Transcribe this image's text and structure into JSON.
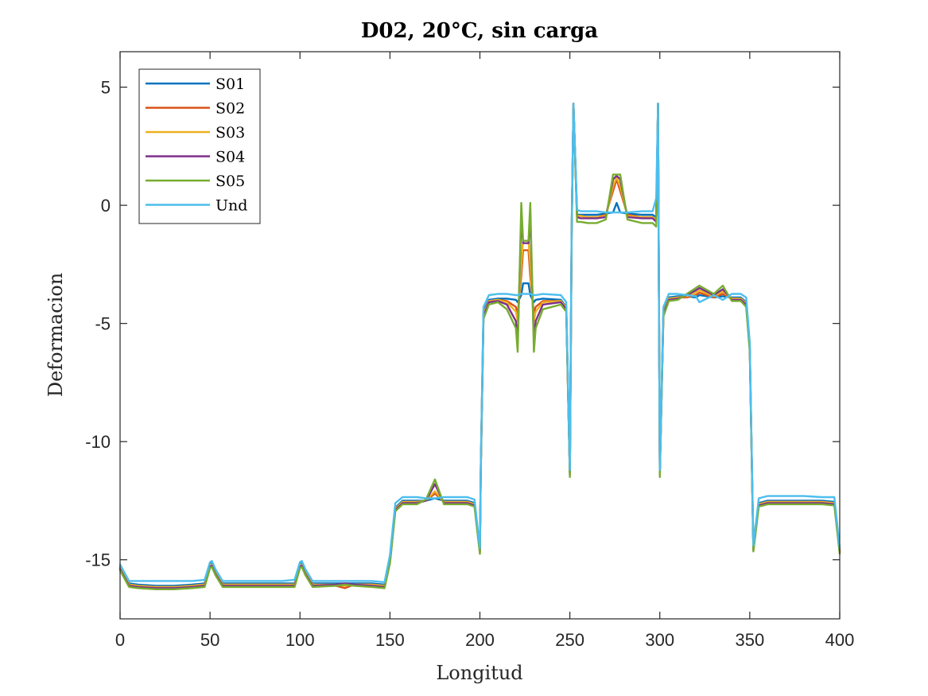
{
  "chart_data": {
    "type": "line",
    "title": "D02, 20°C, sin carga",
    "xlabel": "Longitud",
    "ylabel": "Deformacion",
    "xlim": [
      0,
      400
    ],
    "ylim": [
      -17.5,
      6.5
    ],
    "xticks": [
      0,
      50,
      100,
      150,
      200,
      250,
      300,
      350,
      400
    ],
    "yticks": [
      5,
      0,
      -5,
      -10,
      -15
    ],
    "xtick_labels": [
      "0",
      "50",
      "100",
      "150",
      "200",
      "250",
      "300",
      "350",
      "400"
    ],
    "ytick_labels": [
      "5",
      "0",
      "-5",
      "-10",
      "-15"
    ],
    "grid": false,
    "legend_position": "top-left",
    "series": [
      {
        "name": "S01",
        "color": "#0072BD",
        "x": [
          0,
          5,
          10,
          20,
          30,
          40,
          47,
          50,
          51,
          53,
          57,
          70,
          90,
          97,
          100,
          101,
          103,
          107,
          120,
          125,
          130,
          140,
          147,
          150,
          153,
          157,
          165,
          170,
          175,
          180,
          185,
          193,
          197,
          200,
          200.5,
          202,
          205,
          210,
          215,
          220,
          221,
          223,
          224,
          227,
          228,
          230,
          231,
          235,
          245,
          248,
          250,
          251,
          252,
          254,
          256,
          260,
          265,
          270,
          274,
          276,
          278,
          282,
          290,
          296,
          298,
          299,
          300,
          302,
          305,
          310,
          315,
          320,
          322,
          330,
          335,
          340,
          345,
          348,
          350,
          352,
          355,
          360,
          370,
          380,
          390,
          397,
          400
        ],
        "values": [
          -15.3,
          -16.0,
          -16.05,
          -16.1,
          -16.1,
          -16.05,
          -16.0,
          -15.2,
          -15.15,
          -15.5,
          -16.0,
          -16.0,
          -16.0,
          -16.0,
          -15.2,
          -15.15,
          -15.5,
          -16.0,
          -16.0,
          -16.0,
          -16.0,
          -16.0,
          -16.05,
          -15.0,
          -12.8,
          -12.5,
          -12.5,
          -12.5,
          -12.4,
          -12.5,
          -12.5,
          -12.5,
          -12.6,
          -14.6,
          -11.0,
          -4.5,
          -4.0,
          -3.95,
          -3.95,
          -4.0,
          -4.1,
          -3.8,
          -3.3,
          -3.3,
          -3.8,
          -4.1,
          -4.0,
          -3.95,
          -4.0,
          -4.3,
          -11.3,
          -1.0,
          4.3,
          -0.4,
          -0.4,
          -0.4,
          -0.4,
          -0.35,
          -0.3,
          0.1,
          -0.3,
          -0.35,
          -0.4,
          -0.4,
          -0.5,
          4.3,
          -11.3,
          -4.5,
          -3.9,
          -3.85,
          -3.85,
          -3.9,
          -3.8,
          -3.9,
          -3.85,
          -3.9,
          -3.9,
          -4.1,
          -6.0,
          -14.5,
          -12.6,
          -12.5,
          -12.5,
          -12.5,
          -12.5,
          -12.55,
          -14.6
        ]
      },
      {
        "name": "S02",
        "color": "#D95319",
        "x": [
          0,
          5,
          10,
          20,
          30,
          40,
          47,
          50,
          51,
          53,
          57,
          70,
          90,
          97,
          100,
          101,
          103,
          107,
          120,
          125,
          130,
          140,
          147,
          150,
          153,
          157,
          165,
          170,
          175,
          180,
          185,
          193,
          197,
          200,
          200.5,
          202,
          205,
          210,
          215,
          220,
          221,
          223,
          224,
          227,
          228,
          230,
          231,
          235,
          245,
          248,
          250,
          251,
          252,
          254,
          256,
          260,
          265,
          270,
          274,
          276,
          278,
          282,
          290,
          296,
          298,
          299,
          300,
          302,
          305,
          310,
          315,
          320,
          322,
          330,
          335,
          340,
          345,
          348,
          350,
          352,
          355,
          360,
          370,
          380,
          390,
          397,
          400
        ],
        "values": [
          -15.35,
          -16.05,
          -16.1,
          -16.15,
          -16.15,
          -16.1,
          -16.05,
          -15.25,
          -15.2,
          -15.55,
          -16.05,
          -16.05,
          -16.05,
          -16.05,
          -15.25,
          -15.2,
          -15.55,
          -16.05,
          -16.1,
          -16.2,
          -16.05,
          -16.05,
          -16.1,
          -15.05,
          -12.85,
          -12.55,
          -12.55,
          -12.5,
          -12.2,
          -12.55,
          -12.55,
          -12.55,
          -12.65,
          -14.65,
          -11.1,
          -4.6,
          -4.05,
          -4.0,
          -4.05,
          -4.3,
          -4.6,
          -3.0,
          -1.9,
          -1.9,
          -3.0,
          -4.6,
          -4.3,
          -4.05,
          -4.05,
          -4.35,
          -11.35,
          -1.1,
          4.3,
          -0.45,
          -0.45,
          -0.5,
          -0.5,
          -0.4,
          0.6,
          1.1,
          0.6,
          -0.4,
          -0.5,
          -0.5,
          -0.6,
          4.3,
          -11.35,
          -4.55,
          -3.95,
          -3.9,
          -3.9,
          -3.8,
          -3.7,
          -3.9,
          -3.75,
          -3.95,
          -3.95,
          -4.15,
          -6.05,
          -14.55,
          -12.65,
          -12.55,
          -12.55,
          -12.55,
          -12.55,
          -12.6,
          -14.65
        ]
      },
      {
        "name": "S03",
        "color": "#EDB120",
        "x": [
          0,
          5,
          10,
          20,
          30,
          40,
          47,
          50,
          51,
          53,
          57,
          70,
          90,
          97,
          100,
          101,
          103,
          107,
          120,
          125,
          130,
          140,
          147,
          150,
          153,
          157,
          165,
          170,
          175,
          180,
          185,
          193,
          197,
          200,
          200.5,
          202,
          205,
          210,
          215,
          220,
          221,
          223,
          224,
          227,
          228,
          230,
          231,
          235,
          245,
          248,
          250,
          251,
          252,
          254,
          256,
          260,
          265,
          270,
          274,
          276,
          278,
          282,
          290,
          296,
          298,
          299,
          300,
          302,
          305,
          310,
          315,
          320,
          322,
          330,
          335,
          340,
          345,
          348,
          350,
          352,
          355,
          360,
          370,
          380,
          390,
          397,
          400
        ],
        "values": [
          -15.35,
          -16.05,
          -16.1,
          -16.15,
          -16.15,
          -16.1,
          -16.05,
          -15.25,
          -15.2,
          -15.55,
          -16.05,
          -16.05,
          -16.05,
          -16.05,
          -15.25,
          -15.2,
          -15.55,
          -16.05,
          -16.05,
          -16.1,
          -16.05,
          -16.05,
          -16.1,
          -15.05,
          -12.85,
          -12.55,
          -12.55,
          -12.5,
          -12.1,
          -12.55,
          -12.55,
          -12.55,
          -12.65,
          -14.65,
          -11.1,
          -4.6,
          -4.05,
          -4.0,
          -4.1,
          -4.5,
          -4.9,
          -2.5,
          -1.5,
          -1.5,
          -2.5,
          -4.9,
          -4.5,
          -4.1,
          -4.05,
          -4.35,
          -11.35,
          -1.1,
          4.3,
          -0.45,
          -0.45,
          -0.5,
          -0.5,
          -0.45,
          0.8,
          1.2,
          0.8,
          -0.45,
          -0.5,
          -0.5,
          -0.6,
          4.3,
          -11.35,
          -4.55,
          -3.95,
          -3.9,
          -3.85,
          -3.7,
          -3.6,
          -3.85,
          -3.65,
          -3.95,
          -3.95,
          -4.15,
          -6.05,
          -14.55,
          -12.65,
          -12.55,
          -12.55,
          -12.55,
          -12.55,
          -12.6,
          -14.65
        ]
      },
      {
        "name": "S04",
        "color": "#7E2F8E",
        "x": [
          0,
          5,
          10,
          20,
          30,
          40,
          47,
          50,
          51,
          53,
          57,
          70,
          90,
          97,
          100,
          101,
          103,
          107,
          120,
          125,
          130,
          140,
          147,
          150,
          153,
          157,
          165,
          170,
          175,
          180,
          185,
          193,
          197,
          200,
          200.5,
          202,
          205,
          210,
          215,
          220,
          221,
          223,
          224,
          227,
          228,
          230,
          231,
          235,
          245,
          248,
          250,
          251,
          252,
          254,
          256,
          260,
          265,
          270,
          274,
          276,
          278,
          282,
          290,
          296,
          298,
          299,
          300,
          302,
          305,
          310,
          315,
          320,
          322,
          330,
          335,
          340,
          345,
          348,
          350,
          352,
          355,
          360,
          370,
          380,
          390,
          397,
          400
        ],
        "values": [
          -15.4,
          -16.1,
          -16.15,
          -16.2,
          -16.2,
          -16.15,
          -16.1,
          -15.3,
          -15.25,
          -15.6,
          -16.1,
          -16.1,
          -16.1,
          -16.1,
          -15.3,
          -15.25,
          -15.6,
          -16.1,
          -16.05,
          -16.0,
          -16.05,
          -16.1,
          -16.15,
          -15.1,
          -12.9,
          -12.6,
          -12.6,
          -12.5,
          -11.8,
          -12.6,
          -12.6,
          -12.6,
          -12.7,
          -14.7,
          -11.2,
          -4.7,
          -4.1,
          -4.05,
          -4.2,
          -4.9,
          -5.8,
          -0.5,
          -1.6,
          -1.6,
          -0.5,
          -5.8,
          -4.9,
          -4.2,
          -4.1,
          -4.4,
          -11.4,
          -1.2,
          4.3,
          -0.5,
          -0.55,
          -0.55,
          -0.55,
          -0.5,
          1.1,
          1.25,
          1.1,
          -0.5,
          -0.55,
          -0.55,
          -0.7,
          4.3,
          -11.4,
          -4.6,
          -4.0,
          -3.95,
          -3.8,
          -3.6,
          -3.5,
          -3.8,
          -3.55,
          -4.0,
          -4.0,
          -4.2,
          -6.1,
          -14.6,
          -12.7,
          -12.6,
          -12.6,
          -12.6,
          -12.6,
          -12.65,
          -14.7
        ]
      },
      {
        "name": "S05",
        "color": "#77AC30",
        "x": [
          0,
          5,
          10,
          20,
          30,
          40,
          47,
          50,
          51,
          53,
          57,
          70,
          90,
          97,
          100,
          101,
          103,
          107,
          120,
          125,
          130,
          140,
          147,
          150,
          153,
          157,
          165,
          170,
          175,
          180,
          185,
          193,
          197,
          200,
          200.5,
          202,
          205,
          210,
          215,
          220,
          221,
          223,
          224,
          227,
          228,
          230,
          231,
          235,
          245,
          248,
          250,
          251,
          252,
          254,
          256,
          260,
          265,
          270,
          274,
          276,
          278,
          282,
          290,
          296,
          298,
          299,
          300,
          302,
          305,
          310,
          315,
          320,
          322,
          330,
          335,
          340,
          345,
          348,
          350,
          352,
          355,
          360,
          370,
          380,
          390,
          397,
          400
        ],
        "values": [
          -15.45,
          -16.15,
          -16.2,
          -16.25,
          -16.25,
          -16.2,
          -16.15,
          -15.35,
          -15.3,
          -15.65,
          -16.15,
          -16.15,
          -16.15,
          -16.15,
          -15.35,
          -15.3,
          -15.65,
          -16.15,
          -16.1,
          -16.05,
          -16.1,
          -16.15,
          -16.2,
          -15.15,
          -12.95,
          -12.65,
          -12.65,
          -12.45,
          -11.6,
          -12.65,
          -12.65,
          -12.65,
          -12.75,
          -14.75,
          -11.3,
          -4.8,
          -4.2,
          -4.1,
          -4.4,
          -5.2,
          -6.2,
          0.1,
          -1.5,
          -1.5,
          0.1,
          -6.2,
          -5.2,
          -4.4,
          -4.2,
          -4.5,
          -11.5,
          -1.3,
          4.3,
          -0.7,
          -0.7,
          -0.75,
          -0.75,
          -0.6,
          1.3,
          1.3,
          1.3,
          -0.6,
          -0.75,
          -0.75,
          -0.9,
          4.3,
          -11.5,
          -4.7,
          -4.05,
          -4.0,
          -3.75,
          -3.5,
          -3.4,
          -3.75,
          -3.4,
          -4.05,
          -4.05,
          -4.3,
          -6.2,
          -14.65,
          -12.75,
          -12.65,
          -12.65,
          -12.65,
          -12.65,
          -12.7,
          -14.75
        ]
      },
      {
        "name": "Und",
        "color": "#4DBEEE",
        "x": [
          0,
          5,
          10,
          20,
          30,
          40,
          47,
          50,
          51,
          53,
          57,
          70,
          90,
          97,
          100,
          101,
          103,
          107,
          120,
          125,
          130,
          140,
          147,
          150,
          153,
          157,
          165,
          170,
          175,
          180,
          185,
          193,
          197,
          200,
          200.5,
          202,
          205,
          210,
          215,
          220,
          221,
          223,
          224,
          227,
          228,
          230,
          231,
          235,
          245,
          248,
          250,
          251,
          252,
          254,
          256,
          260,
          265,
          270,
          274,
          276,
          278,
          282,
          290,
          296,
          298,
          299,
          300,
          302,
          305,
          310,
          315,
          320,
          322,
          330,
          335,
          340,
          345,
          348,
          350,
          352,
          355,
          360,
          370,
          380,
          390,
          397,
          400
        ],
        "values": [
          -15.2,
          -15.9,
          -15.9,
          -15.9,
          -15.9,
          -15.9,
          -15.85,
          -15.1,
          -15.05,
          -15.4,
          -15.9,
          -15.9,
          -15.9,
          -15.85,
          -15.1,
          -15.05,
          -15.4,
          -15.9,
          -15.9,
          -15.9,
          -15.9,
          -15.9,
          -15.95,
          -14.8,
          -12.6,
          -12.35,
          -12.35,
          -12.4,
          -12.4,
          -12.35,
          -12.35,
          -12.35,
          -12.45,
          -14.5,
          -11.0,
          -4.3,
          -3.8,
          -3.75,
          -3.75,
          -3.8,
          -3.8,
          -3.75,
          -3.75,
          -3.75,
          -3.75,
          -3.8,
          -3.8,
          -3.75,
          -3.8,
          -4.1,
          -11.2,
          -0.8,
          4.3,
          -0.2,
          -0.25,
          -0.25,
          -0.25,
          -0.3,
          -0.3,
          -0.3,
          -0.3,
          -0.3,
          -0.25,
          -0.25,
          0.3,
          4.3,
          -11.2,
          -4.3,
          -3.75,
          -3.75,
          -3.8,
          -3.85,
          -4.1,
          -3.8,
          -4.0,
          -3.75,
          -3.75,
          -3.9,
          -5.8,
          -14.4,
          -12.4,
          -12.3,
          -12.3,
          -12.3,
          -12.35,
          -12.35,
          -14.5
        ]
      }
    ]
  }
}
